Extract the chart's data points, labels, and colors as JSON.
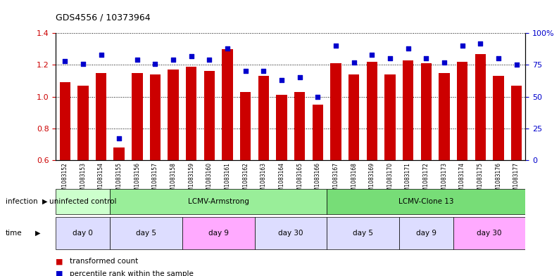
{
  "title": "GDS4556 / 10373964",
  "samples": [
    "GSM1083152",
    "GSM1083153",
    "GSM1083154",
    "GSM1083155",
    "GSM1083156",
    "GSM1083157",
    "GSM1083158",
    "GSM1083159",
    "GSM1083160",
    "GSM1083161",
    "GSM1083162",
    "GSM1083163",
    "GSM1083164",
    "GSM1083165",
    "GSM1083166",
    "GSM1083167",
    "GSM1083168",
    "GSM1083169",
    "GSM1083170",
    "GSM1083171",
    "GSM1083172",
    "GSM1083173",
    "GSM1083174",
    "GSM1083175",
    "GSM1083176",
    "GSM1083177"
  ],
  "bar_values": [
    1.09,
    1.07,
    1.15,
    0.68,
    1.15,
    1.14,
    1.17,
    1.19,
    1.16,
    1.3,
    1.03,
    1.13,
    1.01,
    1.03,
    0.95,
    1.21,
    1.14,
    1.22,
    1.14,
    1.23,
    1.21,
    1.15,
    1.22,
    1.27,
    1.13,
    1.07
  ],
  "dot_values": [
    78,
    76,
    83,
    17,
    79,
    76,
    79,
    82,
    79,
    88,
    70,
    70,
    63,
    65,
    50,
    90,
    77,
    83,
    80,
    88,
    80,
    77,
    90,
    92,
    80,
    75
  ],
  "bar_color": "#cc0000",
  "dot_color": "#0000cc",
  "ylim_left": [
    0.6,
    1.4
  ],
  "ylim_right": [
    0,
    100
  ],
  "yticks_left": [
    0.6,
    0.8,
    1.0,
    1.2,
    1.4
  ],
  "yticks_right": [
    0,
    25,
    50,
    75,
    100
  ],
  "ytick_labels_right": [
    "0",
    "25",
    "50",
    "75",
    "100%"
  ],
  "infection_groups": [
    {
      "label": "uninfected control",
      "start": 0,
      "end": 3,
      "color": "#ccffcc"
    },
    {
      "label": "LCMV-Armstrong",
      "start": 3,
      "end": 15,
      "color": "#99ee99"
    },
    {
      "label": "LCMV-Clone 13",
      "start": 15,
      "end": 26,
      "color": "#77dd77"
    }
  ],
  "time_groups": [
    {
      "label": "day 0",
      "start": 0,
      "end": 3,
      "color": "#ddddff"
    },
    {
      "label": "day 5",
      "start": 3,
      "end": 7,
      "color": "#ddddff"
    },
    {
      "label": "day 9",
      "start": 7,
      "end": 11,
      "color": "#ffaaff"
    },
    {
      "label": "day 30",
      "start": 11,
      "end": 15,
      "color": "#ddddff"
    },
    {
      "label": "day 5",
      "start": 15,
      "end": 19,
      "color": "#ddddff"
    },
    {
      "label": "day 9",
      "start": 19,
      "end": 22,
      "color": "#ddddff"
    },
    {
      "label": "day 30",
      "start": 22,
      "end": 26,
      "color": "#ffaaff"
    }
  ],
  "legend_items": [
    {
      "label": "transformed count",
      "color": "#cc0000",
      "marker": "s"
    },
    {
      "label": "percentile rank within the sample",
      "color": "#0000cc",
      "marker": "s"
    }
  ],
  "background_color": "#ffffff",
  "grid_color": "#000000",
  "tick_color_left": "#cc0000",
  "tick_color_right": "#0000cc"
}
